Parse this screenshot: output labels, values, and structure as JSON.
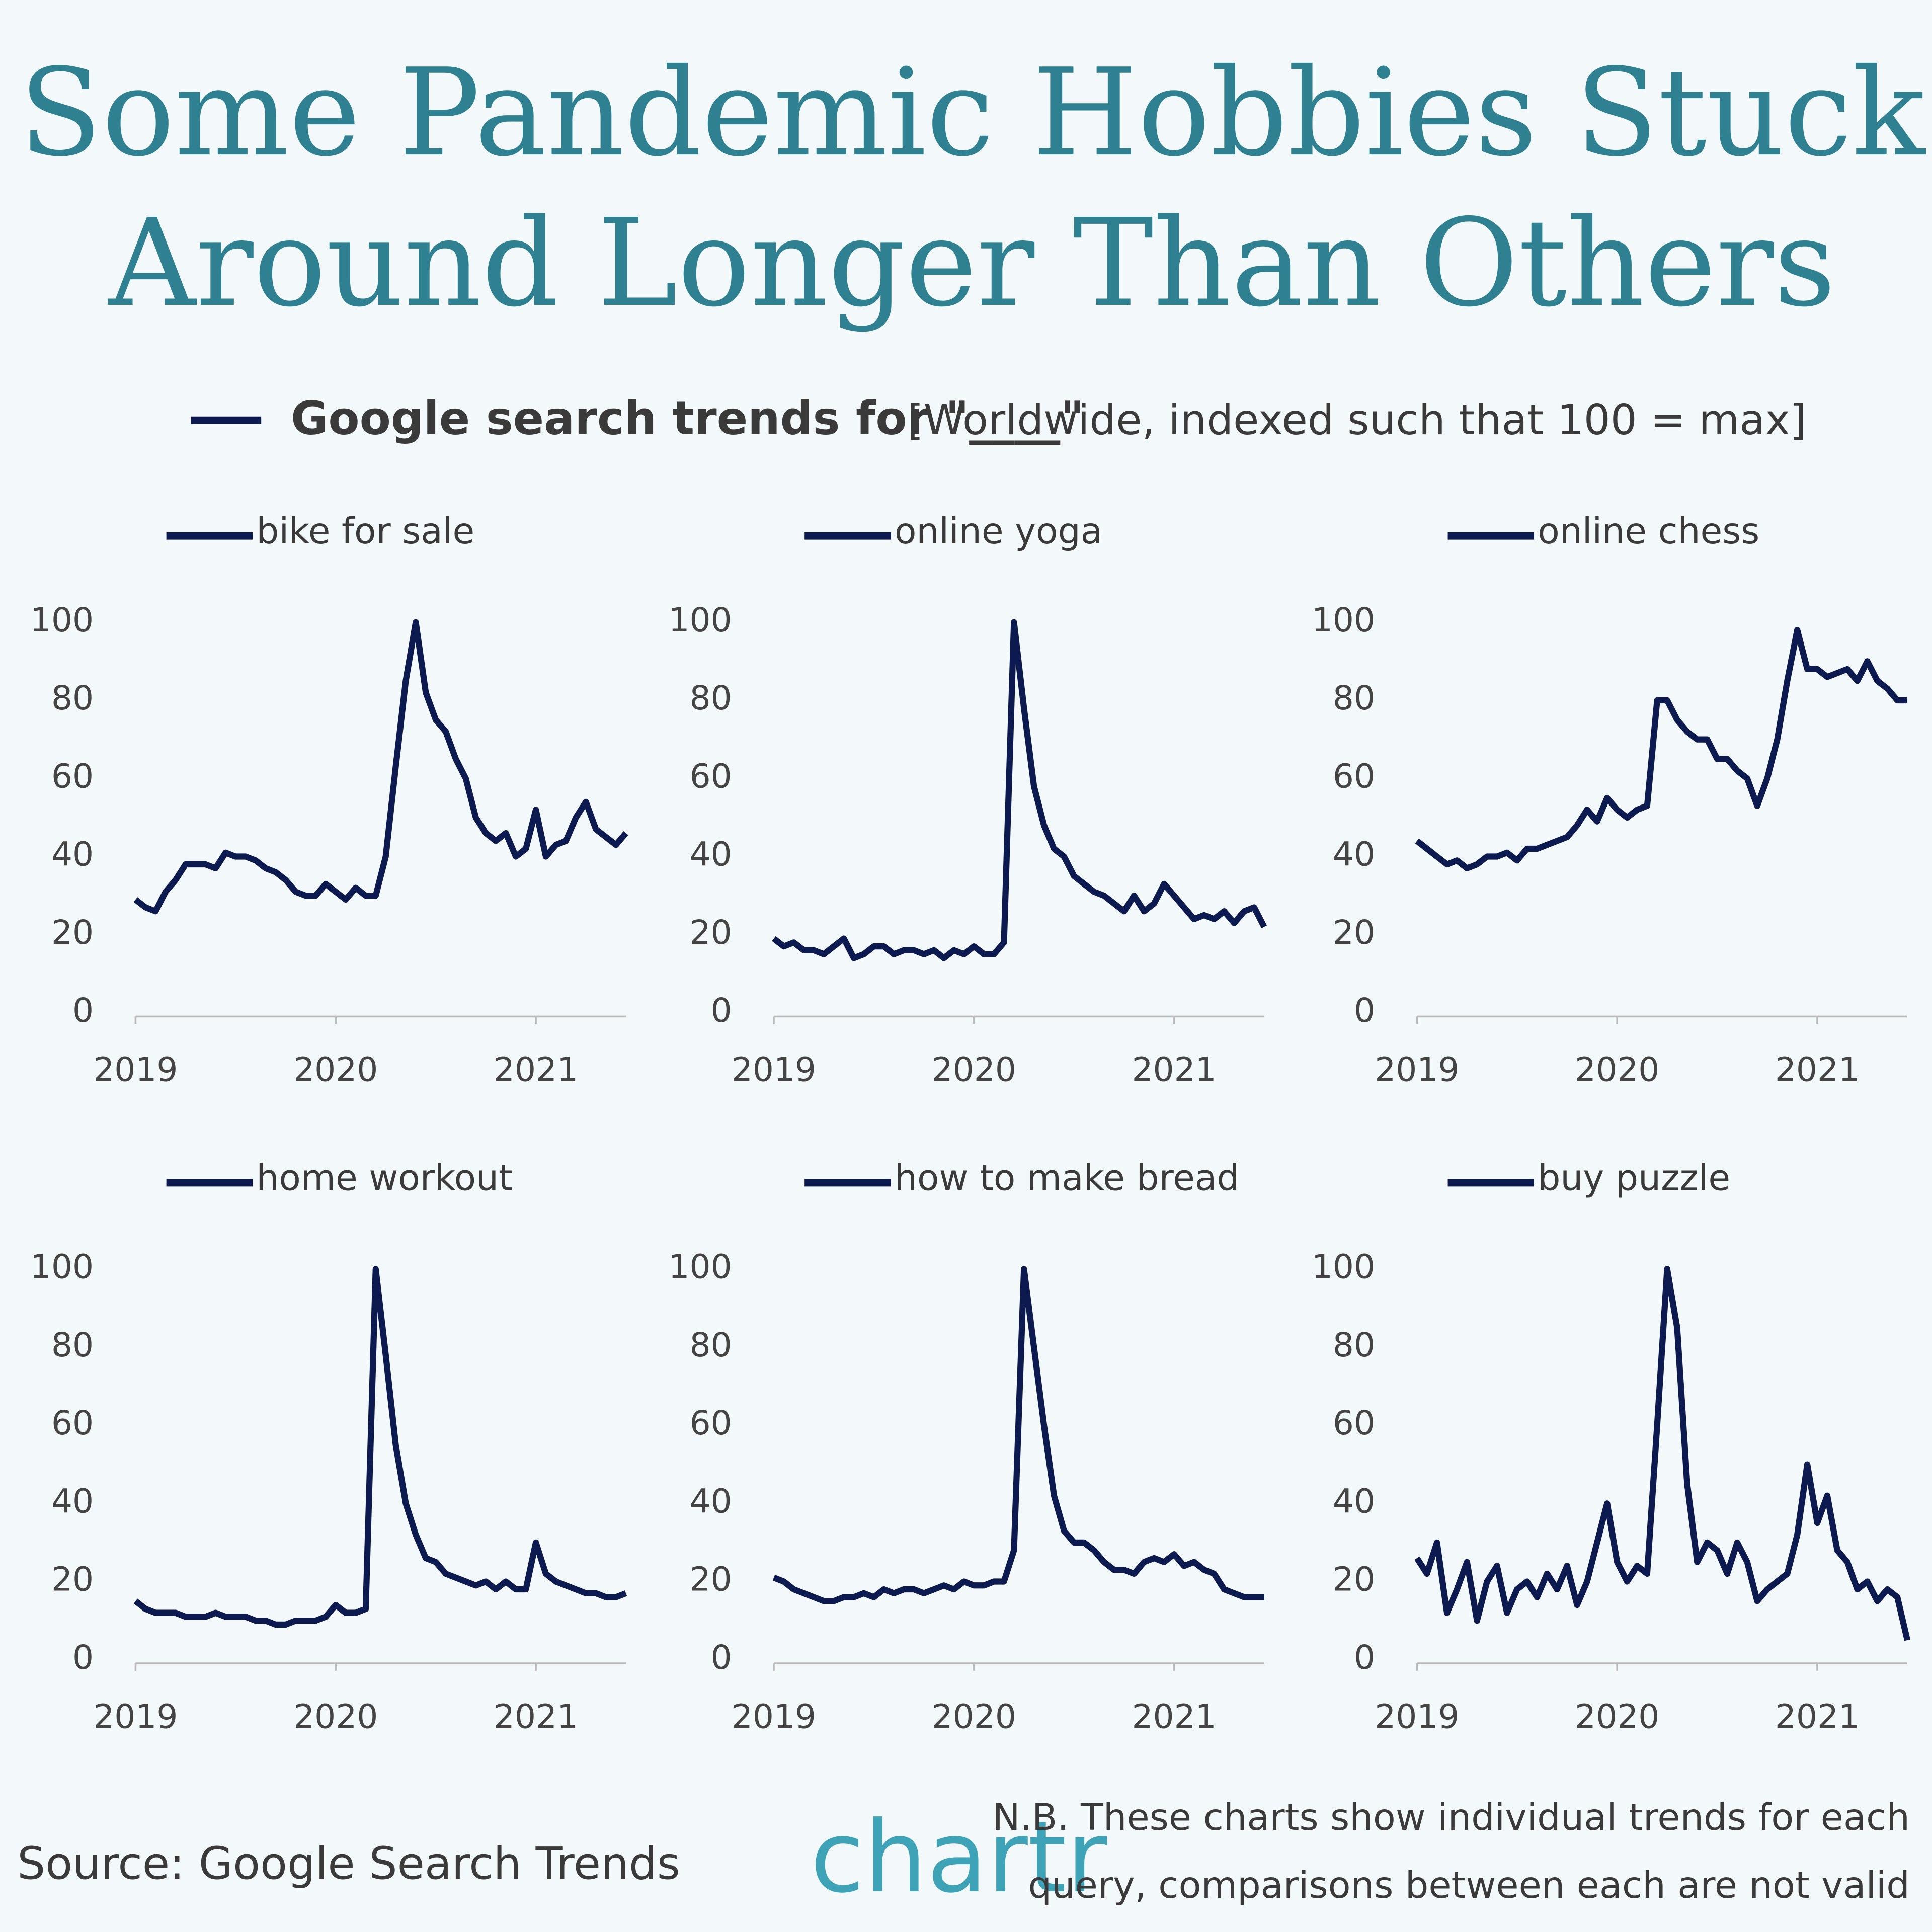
{
  "title": [
    "Some Pandemic Hobbies Stuck",
    "Around Longer Than Others"
  ],
  "legend_label": "Google search trends for \"____\"",
  "subtitle": "[Worldwide, indexed such that 100 = max]",
  "source": "Source: Google Search Trends",
  "logo": "chartr",
  "note": [
    "N.B. These charts show individual trends for each",
    "query, comparisons between each are not valid"
  ],
  "chart_data": [
    {
      "type": "line",
      "xlim": [
        2019,
        2021.45
      ],
      "ylim": [
        0,
        100
      ],
      "xticks": [
        2019,
        2020,
        2021
      ],
      "yticks": [
        0,
        20,
        40,
        60,
        80,
        100
      ],
      "x": [
        2019,
        2019.05,
        2019.1,
        2019.15,
        2019.2,
        2019.25,
        2019.3,
        2019.35,
        2019.4,
        2019.45,
        2019.5,
        2019.55,
        2019.6,
        2019.65,
        2019.7,
        2019.75,
        2019.8,
        2019.85,
        2019.9,
        2019.95,
        2020,
        2020.05,
        2020.1,
        2020.15,
        2020.2,
        2020.25,
        2020.3,
        2020.35,
        2020.4,
        2020.45,
        2020.5,
        2020.55,
        2020.6,
        2020.65,
        2020.7,
        2020.75,
        2020.8,
        2020.85,
        2020.9,
        2020.95,
        2021,
        2021.05,
        2021.1,
        2021.15,
        2021.2,
        2021.25,
        2021.3,
        2021.35,
        2021.4,
        2021.45
      ],
      "series": [
        {
          "name": "bike for sale",
          "color": "#0d1a4f",
          "values": [
            29,
            27,
            26,
            31,
            34,
            38,
            38,
            38,
            37,
            41,
            40,
            40,
            39,
            37,
            36,
            34,
            31,
            30,
            30,
            33,
            31,
            29,
            32,
            30,
            30,
            40,
            63,
            85,
            100,
            82,
            75,
            72,
            65,
            60,
            50,
            46,
            44,
            46,
            40,
            42,
            52,
            40,
            43,
            44,
            50,
            54,
            47,
            45,
            43,
            46
          ]
        }
      ]
    },
    {
      "type": "line",
      "xlim": [
        2019,
        2021.45
      ],
      "ylim": [
        0,
        100
      ],
      "xticks": [
        2019,
        2020,
        2021
      ],
      "yticks": [
        0,
        20,
        40,
        60,
        80,
        100
      ],
      "x": [
        2019,
        2019.05,
        2019.1,
        2019.15,
        2019.2,
        2019.25,
        2019.3,
        2019.35,
        2019.4,
        2019.45,
        2019.5,
        2019.55,
        2019.6,
        2019.65,
        2019.7,
        2019.75,
        2019.8,
        2019.85,
        2019.9,
        2019.95,
        2020,
        2020.05,
        2020.1,
        2020.15,
        2020.2,
        2020.25,
        2020.3,
        2020.35,
        2020.4,
        2020.45,
        2020.5,
        2020.55,
        2020.6,
        2020.65,
        2020.7,
        2020.75,
        2020.8,
        2020.85,
        2020.9,
        2020.95,
        2021,
        2021.05,
        2021.1,
        2021.15,
        2021.2,
        2021.25,
        2021.3,
        2021.35,
        2021.4,
        2021.45
      ],
      "series": [
        {
          "name": "online yoga",
          "color": "#0d1a4f",
          "values": [
            19,
            17,
            18,
            16,
            16,
            15,
            17,
            19,
            14,
            15,
            17,
            17,
            15,
            16,
            16,
            15,
            16,
            14,
            16,
            15,
            17,
            15,
            15,
            18,
            100,
            78,
            58,
            48,
            42,
            40,
            35,
            33,
            31,
            30,
            28,
            26,
            30,
            26,
            28,
            33,
            30,
            27,
            24,
            25,
            24,
            26,
            23,
            26,
            27,
            22
          ]
        }
      ]
    },
    {
      "type": "line",
      "xlim": [
        2019,
        2021.45
      ],
      "ylim": [
        0,
        100
      ],
      "xticks": [
        2019,
        2020,
        2021
      ],
      "yticks": [
        0,
        20,
        40,
        60,
        80,
        100
      ],
      "x": [
        2019,
        2019.05,
        2019.1,
        2019.15,
        2019.2,
        2019.25,
        2019.3,
        2019.35,
        2019.4,
        2019.45,
        2019.5,
        2019.55,
        2019.6,
        2019.65,
        2019.7,
        2019.75,
        2019.8,
        2019.85,
        2019.9,
        2019.95,
        2020,
        2020.05,
        2020.1,
        2020.15,
        2020.2,
        2020.25,
        2020.3,
        2020.35,
        2020.4,
        2020.45,
        2020.5,
        2020.55,
        2020.6,
        2020.65,
        2020.7,
        2020.75,
        2020.8,
        2020.85,
        2020.9,
        2020.95,
        2021,
        2021.05,
        2021.1,
        2021.15,
        2021.2,
        2021.25,
        2021.3,
        2021.35,
        2021.4,
        2021.45
      ],
      "series": [
        {
          "name": "online chess",
          "color": "#0d1a4f",
          "values": [
            44,
            42,
            40,
            38,
            39,
            37,
            38,
            40,
            40,
            41,
            39,
            42,
            42,
            43,
            44,
            45,
            48,
            52,
            49,
            55,
            52,
            50,
            52,
            53,
            80,
            80,
            75,
            72,
            70,
            70,
            65,
            65,
            62,
            60,
            53,
            60,
            70,
            85,
            98,
            88,
            88,
            86,
            87,
            88,
            85,
            90,
            85,
            83,
            80,
            80
          ]
        }
      ]
    },
    {
      "type": "line",
      "xlim": [
        2019,
        2021.45
      ],
      "ylim": [
        0,
        100
      ],
      "xticks": [
        2019,
        2020,
        2021
      ],
      "yticks": [
        0,
        20,
        40,
        60,
        80,
        100
      ],
      "x": [
        2019,
        2019.05,
        2019.1,
        2019.15,
        2019.2,
        2019.25,
        2019.3,
        2019.35,
        2019.4,
        2019.45,
        2019.5,
        2019.55,
        2019.6,
        2019.65,
        2019.7,
        2019.75,
        2019.8,
        2019.85,
        2019.9,
        2019.95,
        2020,
        2020.05,
        2020.1,
        2020.15,
        2020.2,
        2020.25,
        2020.3,
        2020.35,
        2020.4,
        2020.45,
        2020.5,
        2020.55,
        2020.6,
        2020.65,
        2020.7,
        2020.75,
        2020.8,
        2020.85,
        2020.9,
        2020.95,
        2021,
        2021.05,
        2021.1,
        2021.15,
        2021.2,
        2021.25,
        2021.3,
        2021.35,
        2021.4,
        2021.45
      ],
      "series": [
        {
          "name": "home workout",
          "color": "#0d1a4f",
          "values": [
            15,
            13,
            12,
            12,
            12,
            11,
            11,
            11,
            12,
            11,
            11,
            11,
            10,
            10,
            9,
            9,
            10,
            10,
            10,
            11,
            14,
            12,
            12,
            13,
            100,
            78,
            55,
            40,
            32,
            26,
            25,
            22,
            21,
            20,
            19,
            20,
            18,
            20,
            18,
            18,
            30,
            22,
            20,
            19,
            18,
            17,
            17,
            16,
            16,
            17
          ]
        }
      ]
    },
    {
      "type": "line",
      "xlim": [
        2019,
        2021.45
      ],
      "ylim": [
        0,
        100
      ],
      "xticks": [
        2019,
        2020,
        2021
      ],
      "yticks": [
        0,
        20,
        40,
        60,
        80,
        100
      ],
      "x": [
        2019,
        2019.05,
        2019.1,
        2019.15,
        2019.2,
        2019.25,
        2019.3,
        2019.35,
        2019.4,
        2019.45,
        2019.5,
        2019.55,
        2019.6,
        2019.65,
        2019.7,
        2019.75,
        2019.8,
        2019.85,
        2019.9,
        2019.95,
        2020,
        2020.05,
        2020.1,
        2020.15,
        2020.2,
        2020.25,
        2020.3,
        2020.35,
        2020.4,
        2020.45,
        2020.5,
        2020.55,
        2020.6,
        2020.65,
        2020.7,
        2020.75,
        2020.8,
        2020.85,
        2020.9,
        2020.95,
        2021,
        2021.05,
        2021.1,
        2021.15,
        2021.2,
        2021.25,
        2021.3,
        2021.35,
        2021.4,
        2021.45
      ],
      "series": [
        {
          "name": "how to make bread",
          "color": "#0d1a4f",
          "values": [
            21,
            20,
            18,
            17,
            16,
            15,
            15,
            16,
            16,
            17,
            16,
            18,
            17,
            18,
            18,
            17,
            18,
            19,
            18,
            20,
            19,
            19,
            20,
            20,
            28,
            100,
            80,
            60,
            42,
            33,
            30,
            30,
            28,
            25,
            23,
            23,
            22,
            25,
            26,
            25,
            27,
            24,
            25,
            23,
            22,
            18,
            17,
            16,
            16,
            16
          ]
        }
      ]
    },
    {
      "type": "line",
      "xlim": [
        2019,
        2021.45
      ],
      "ylim": [
        0,
        100
      ],
      "xticks": [
        2019,
        2020,
        2021
      ],
      "yticks": [
        0,
        20,
        40,
        60,
        80,
        100
      ],
      "x": [
        2019,
        2019.05,
        2019.1,
        2019.15,
        2019.2,
        2019.25,
        2019.3,
        2019.35,
        2019.4,
        2019.45,
        2019.5,
        2019.55,
        2019.6,
        2019.65,
        2019.7,
        2019.75,
        2019.8,
        2019.85,
        2019.9,
        2019.95,
        2020,
        2020.05,
        2020.1,
        2020.15,
        2020.2,
        2020.25,
        2020.3,
        2020.35,
        2020.4,
        2020.45,
        2020.5,
        2020.55,
        2020.6,
        2020.65,
        2020.7,
        2020.75,
        2020.8,
        2020.85,
        2020.9,
        2020.95,
        2021,
        2021.05,
        2021.1,
        2021.15,
        2021.2,
        2021.25,
        2021.3,
        2021.35,
        2021.4,
        2021.45
      ],
      "series": [
        {
          "name": "buy puzzle",
          "color": "#0d1a4f",
          "values": [
            26,
            22,
            30,
            12,
            18,
            25,
            10,
            20,
            24,
            12,
            18,
            20,
            16,
            22,
            18,
            24,
            14,
            20,
            30,
            40,
            25,
            20,
            24,
            22,
            60,
            100,
            85,
            45,
            25,
            30,
            28,
            22,
            30,
            25,
            15,
            18,
            20,
            22,
            32,
            50,
            35,
            42,
            28,
            25,
            18,
            20,
            15,
            18,
            16,
            5
          ]
        }
      ]
    }
  ]
}
